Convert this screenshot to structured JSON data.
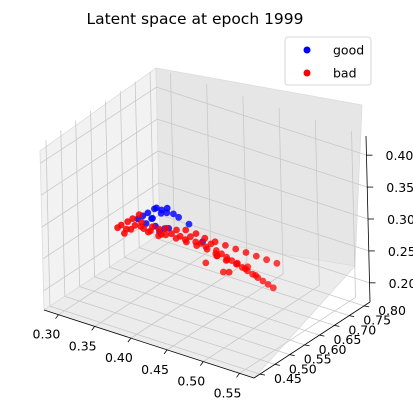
{
  "chart_data": {
    "type": "scatter",
    "projection": "3d",
    "title": "Latent space at epoch 1999",
    "xlabel": "",
    "ylabel": "",
    "zlabel": "",
    "x_ticks": [
      "0.30",
      "0.35",
      "0.40",
      "0.45",
      "0.50",
      "0.55"
    ],
    "y_ticks": [
      "0.45",
      "0.50",
      "0.55",
      "0.60",
      "0.65",
      "0.70",
      "0.75",
      "0.80"
    ],
    "z_ticks": [
      "0.20",
      "0.25",
      "0.30",
      "0.35",
      "0.40"
    ],
    "xlim": [
      0.28,
      0.57
    ],
    "ylim": [
      0.43,
      0.82
    ],
    "zlim": [
      0.17,
      0.43
    ],
    "grid": true,
    "legend_position": "top-right",
    "series": [
      {
        "name": "good",
        "color": "#0000ff",
        "points": [
          [
            0.39,
            0.52,
            0.335
          ],
          [
            0.395,
            0.53,
            0.34
          ],
          [
            0.4,
            0.525,
            0.345
          ],
          [
            0.385,
            0.515,
            0.33
          ],
          [
            0.41,
            0.535,
            0.338
          ],
          [
            0.4,
            0.54,
            0.332
          ],
          [
            0.395,
            0.52,
            0.328
          ],
          [
            0.405,
            0.53,
            0.342
          ],
          [
            0.38,
            0.51,
            0.325
          ],
          [
            0.415,
            0.545,
            0.335
          ],
          [
            0.39,
            0.535,
            0.322
          ],
          [
            0.4,
            0.52,
            0.318
          ],
          [
            0.42,
            0.55,
            0.33
          ],
          [
            0.385,
            0.525,
            0.315
          ],
          [
            0.41,
            0.54,
            0.312
          ],
          [
            0.4,
            0.55,
            0.305
          ],
          [
            0.43,
            0.56,
            0.32
          ],
          [
            0.395,
            0.545,
            0.3
          ],
          [
            0.44,
            0.58,
            0.29
          ],
          [
            0.415,
            0.525,
            0.35
          ]
        ]
      },
      {
        "name": "bad",
        "color": "#ff0000",
        "points": [
          [
            0.37,
            0.5,
            0.32
          ],
          [
            0.375,
            0.505,
            0.325
          ],
          [
            0.38,
            0.5,
            0.318
          ],
          [
            0.385,
            0.51,
            0.322
          ],
          [
            0.39,
            0.505,
            0.315
          ],
          [
            0.37,
            0.495,
            0.31
          ],
          [
            0.365,
            0.49,
            0.316
          ],
          [
            0.38,
            0.515,
            0.33
          ],
          [
            0.395,
            0.515,
            0.31
          ],
          [
            0.4,
            0.51,
            0.32
          ],
          [
            0.405,
            0.52,
            0.315
          ],
          [
            0.41,
            0.515,
            0.31
          ],
          [
            0.415,
            0.52,
            0.32
          ],
          [
            0.42,
            0.525,
            0.312
          ],
          [
            0.425,
            0.53,
            0.318
          ],
          [
            0.43,
            0.53,
            0.31
          ],
          [
            0.435,
            0.535,
            0.305
          ],
          [
            0.44,
            0.54,
            0.31
          ],
          [
            0.445,
            0.545,
            0.302
          ],
          [
            0.45,
            0.55,
            0.3
          ],
          [
            0.455,
            0.555,
            0.295
          ],
          [
            0.46,
            0.56,
            0.3
          ],
          [
            0.465,
            0.565,
            0.29
          ],
          [
            0.47,
            0.57,
            0.285
          ],
          [
            0.475,
            0.575,
            0.28
          ],
          [
            0.48,
            0.58,
            0.275
          ],
          [
            0.485,
            0.585,
            0.27
          ],
          [
            0.49,
            0.59,
            0.265
          ],
          [
            0.495,
            0.595,
            0.26
          ],
          [
            0.5,
            0.6,
            0.255
          ],
          [
            0.505,
            0.605,
            0.25
          ],
          [
            0.51,
            0.61,
            0.245
          ],
          [
            0.515,
            0.615,
            0.24
          ],
          [
            0.52,
            0.62,
            0.235
          ],
          [
            0.44,
            0.56,
            0.29
          ],
          [
            0.45,
            0.57,
            0.285
          ],
          [
            0.46,
            0.575,
            0.28
          ],
          [
            0.47,
            0.585,
            0.27
          ],
          [
            0.48,
            0.595,
            0.265
          ],
          [
            0.49,
            0.6,
            0.26
          ],
          [
            0.5,
            0.61,
            0.25
          ],
          [
            0.42,
            0.54,
            0.3
          ],
          [
            0.43,
            0.55,
            0.295
          ],
          [
            0.41,
            0.53,
            0.305
          ],
          [
            0.4,
            0.53,
            0.3
          ],
          [
            0.39,
            0.52,
            0.305
          ],
          [
            0.38,
            0.52,
            0.31
          ],
          [
            0.37,
            0.51,
            0.305
          ],
          [
            0.36,
            0.49,
            0.31
          ],
          [
            0.365,
            0.5,
            0.3
          ],
          [
            0.44,
            0.525,
            0.325
          ],
          [
            0.45,
            0.535,
            0.32
          ],
          [
            0.46,
            0.54,
            0.315
          ],
          [
            0.47,
            0.55,
            0.31
          ],
          [
            0.48,
            0.56,
            0.305
          ],
          [
            0.49,
            0.57,
            0.3
          ],
          [
            0.5,
            0.58,
            0.295
          ],
          [
            0.51,
            0.59,
            0.29
          ],
          [
            0.52,
            0.6,
            0.285
          ],
          [
            0.53,
            0.61,
            0.28
          ],
          [
            0.455,
            0.59,
            0.27
          ],
          [
            0.465,
            0.6,
            0.265
          ],
          [
            0.475,
            0.61,
            0.26
          ],
          [
            0.485,
            0.62,
            0.255
          ],
          [
            0.46,
            0.58,
            0.275
          ],
          [
            0.45,
            0.565,
            0.265
          ],
          [
            0.47,
            0.575,
            0.255
          ],
          [
            0.48,
            0.57,
            0.26
          ]
        ]
      }
    ]
  }
}
